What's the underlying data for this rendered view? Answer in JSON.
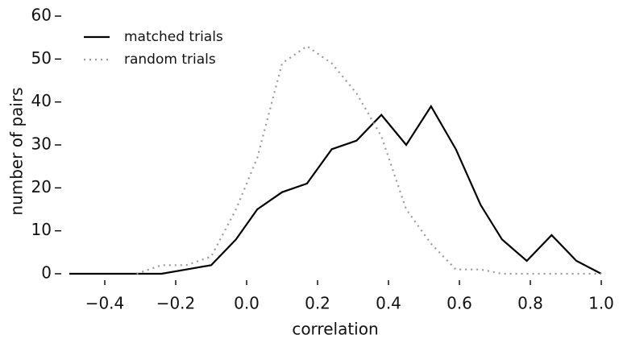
{
  "chart_data": {
    "type": "line",
    "xlabel": "correlation",
    "ylabel": "number of pairs",
    "legend": "upper left",
    "xlim": [
      -0.5,
      1.0
    ],
    "ylim": [
      0,
      60
    ],
    "xticks": [
      {
        "value": -0.4,
        "label": "−0.4"
      },
      {
        "value": -0.2,
        "label": "−0.2"
      },
      {
        "value": 0,
        "label": "0.0"
      },
      0.2,
      0.4,
      0.6,
      0.8,
      {
        "value": 1,
        "label": "1.0"
      }
    ],
    "yticks": [
      0,
      10,
      20,
      30,
      40,
      50,
      60
    ],
    "series": [
      {
        "name": "matched trials",
        "color": "#000000",
        "style": "solid",
        "x": [
          -0.5,
          -0.45,
          -0.38,
          -0.31,
          -0.24,
          -0.17,
          -0.1,
          -0.03,
          0.03,
          0.1,
          0.17,
          0.24,
          0.31,
          0.38,
          0.45,
          0.52,
          0.59,
          0.66,
          0.72,
          0.79,
          0.86,
          0.93,
          1.0
        ],
        "values": [
          0,
          0,
          0,
          0,
          0,
          1,
          2,
          8,
          15,
          19,
          21,
          29,
          31,
          37,
          30,
          39,
          29,
          16,
          8,
          3,
          9,
          3,
          0
        ]
      },
      {
        "name": "random trials",
        "color": "#999999",
        "style": "dotted",
        "x": [
          -0.31,
          -0.24,
          -0.17,
          -0.1,
          -0.03,
          0.03,
          0.1,
          0.17,
          0.24,
          0.31,
          0.38,
          0.45,
          0.52,
          0.59,
          0.66,
          0.72,
          0.79,
          0.86,
          0.93,
          1.0
        ],
        "values": [
          0,
          2,
          2,
          4,
          15,
          27,
          49,
          53,
          49,
          42,
          32,
          15,
          7,
          1,
          1,
          0,
          0,
          0,
          0,
          0
        ]
      }
    ]
  }
}
